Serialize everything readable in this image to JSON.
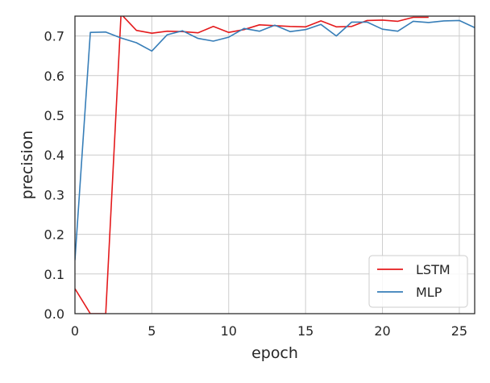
{
  "chart_data": {
    "type": "line",
    "title": "",
    "xlabel": "epoch",
    "ylabel": "precision",
    "xlim": [
      0,
      26
    ],
    "ylim": [
      0,
      0.75
    ],
    "xticks": [
      0,
      5,
      10,
      15,
      20,
      25
    ],
    "xtick_labels": [
      "0",
      "5",
      "10",
      "15",
      "20",
      "25"
    ],
    "yticks": [
      0.0,
      0.1,
      0.2,
      0.3,
      0.4,
      0.5,
      0.6,
      0.7
    ],
    "ytick_labels": [
      "0.0",
      "0.1",
      "0.2",
      "0.3",
      "0.4",
      "0.5",
      "0.6",
      "0.7"
    ],
    "grid": true,
    "legend_position": "lower-right",
    "series": [
      {
        "name": "LSTM",
        "color": "#e41a1c",
        "x": [
          0,
          1,
          2,
          3,
          4,
          5,
          6,
          7,
          8,
          9,
          10,
          11,
          12,
          13,
          14,
          15,
          16,
          17,
          18,
          19,
          20,
          21,
          22,
          23
        ],
        "y": [
          0.063,
          0.0,
          0.0,
          0.755,
          0.714,
          0.707,
          0.712,
          0.711,
          0.708,
          0.724,
          0.709,
          0.716,
          0.728,
          0.726,
          0.724,
          0.723,
          0.738,
          0.723,
          0.724,
          0.739,
          0.74,
          0.737,
          0.747,
          0.747
        ]
      },
      {
        "name": "MLP",
        "color": "#377eb8",
        "x": [
          0,
          1,
          2,
          3,
          4,
          5,
          6,
          7,
          8,
          9,
          10,
          11,
          12,
          13,
          14,
          15,
          16,
          17,
          18,
          19,
          20,
          21,
          22,
          23,
          24,
          25,
          26
        ],
        "y": [
          0.135,
          0.709,
          0.71,
          0.695,
          0.683,
          0.662,
          0.703,
          0.713,
          0.694,
          0.687,
          0.697,
          0.719,
          0.712,
          0.727,
          0.711,
          0.716,
          0.729,
          0.7,
          0.735,
          0.735,
          0.717,
          0.712,
          0.737,
          0.734,
          0.738,
          0.739,
          0.721
        ]
      }
    ]
  }
}
